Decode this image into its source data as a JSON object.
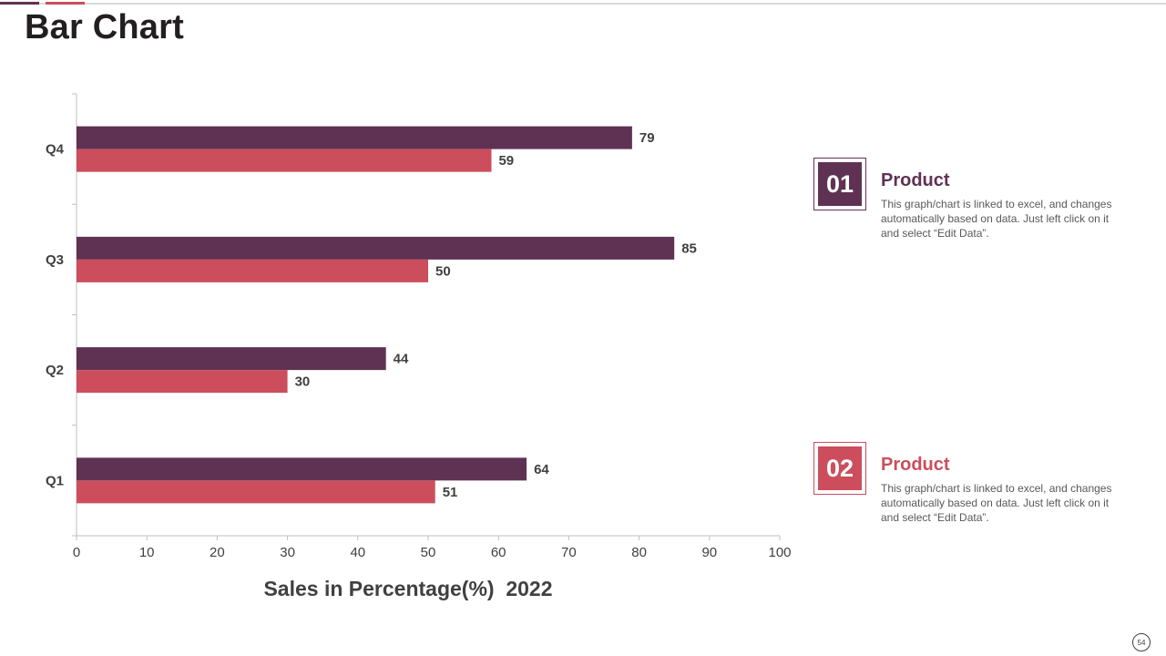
{
  "header": {
    "title": "Bar Chart",
    "accent_colors": [
      "#5f3253",
      "#cc4e5c"
    ]
  },
  "chart_data": {
    "type": "bar",
    "orientation": "horizontal",
    "title": "",
    "xlabel": "Sales in Percentage(%)  2022",
    "ylabel": "",
    "xlim": [
      0,
      100
    ],
    "x_ticks": [
      0,
      10,
      20,
      30,
      40,
      50,
      60,
      70,
      80,
      90,
      100
    ],
    "categories": [
      "Q1",
      "Q2",
      "Q3",
      "Q4"
    ],
    "series": [
      {
        "name": "Product 01",
        "color": "#5f3253",
        "values": [
          64,
          44,
          85,
          79
        ]
      },
      {
        "name": "Product 02",
        "color": "#cc4e5c",
        "values": [
          51,
          30,
          50,
          59
        ]
      }
    ],
    "grid": false,
    "data_labels": true
  },
  "legend": [
    {
      "number": "01",
      "title": "Product",
      "description": "This graph/chart is linked to excel, and changes automatically based on data. Just left click on it and select “Edit Data”.",
      "color": "#5f3253"
    },
    {
      "number": "02",
      "title": "Product",
      "description": "This graph/chart is linked to excel, and changes automatically based on data. Just left click on it and select “Edit Data”.",
      "color": "#cc4e5c"
    }
  ],
  "footer": {
    "page_number": "54"
  }
}
